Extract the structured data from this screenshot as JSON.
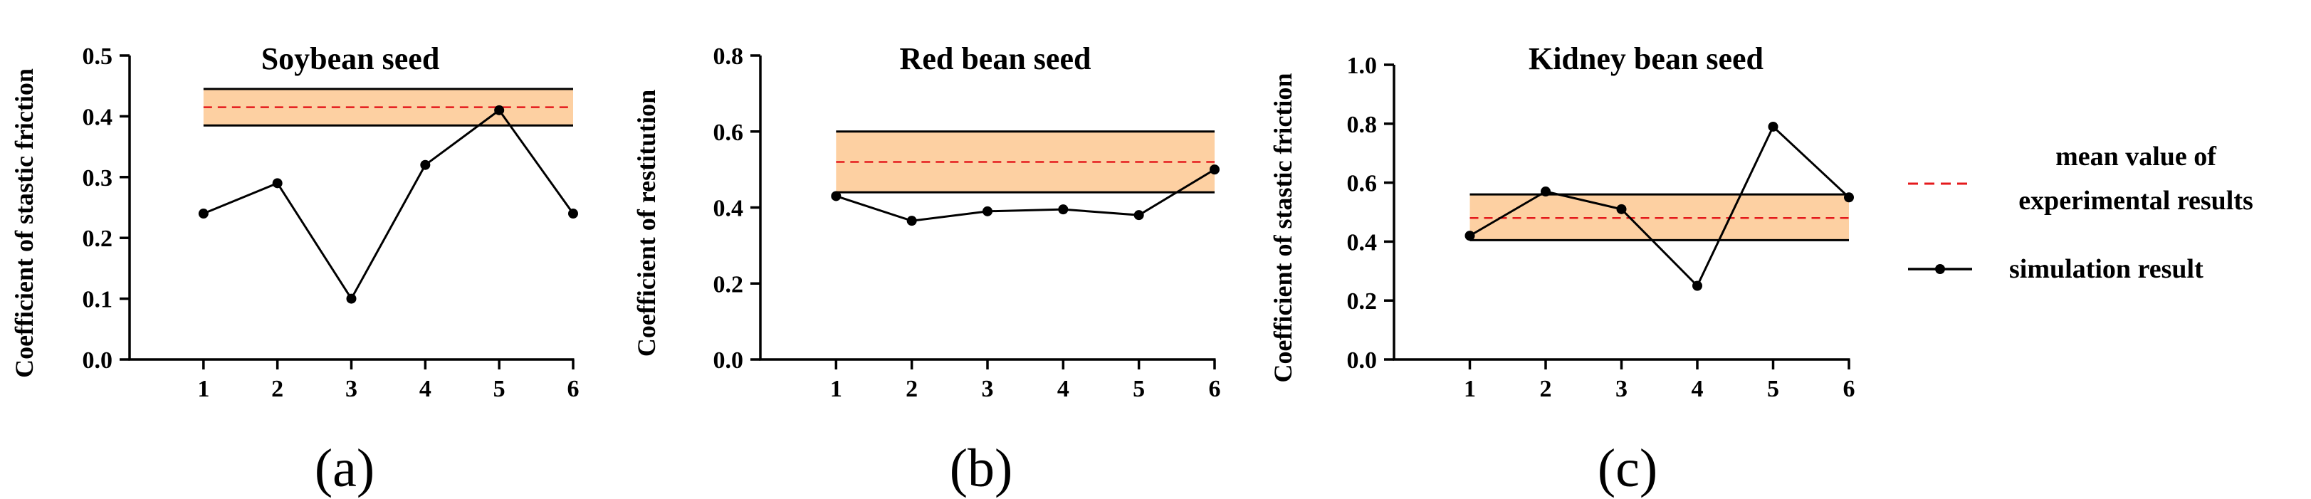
{
  "chart_data": [
    {
      "type": "line",
      "panel_label": "(a)",
      "title": "Soybean seed",
      "xlabel": "",
      "ylabel": "Coefficient of stastic friction",
      "x": [
        1,
        2,
        3,
        4,
        5,
        6
      ],
      "xlim": [
        0,
        6
      ],
      "ylim": [
        0,
        0.5
      ],
      "yticks": [
        0.0,
        0.1,
        0.2,
        0.3,
        0.4,
        0.5
      ],
      "ytick_labels": [
        "0.0",
        "0.1",
        "0.2",
        "0.3",
        "0.4",
        "0.5"
      ],
      "series": [
        {
          "name": "simulation result",
          "values": [
            0.24,
            0.29,
            0.1,
            0.32,
            0.41,
            0.24
          ]
        }
      ],
      "experimental_mean": 0.415,
      "experimental_band": [
        0.385,
        0.445
      ]
    },
    {
      "type": "line",
      "panel_label": "(b)",
      "title": "Red bean seed",
      "xlabel": "",
      "ylabel": "Coefficient of restitution",
      "x": [
        1,
        2,
        3,
        4,
        5,
        6
      ],
      "xlim": [
        0,
        6
      ],
      "ylim": [
        0,
        0.8
      ],
      "yticks": [
        0.0,
        0.2,
        0.4,
        0.6,
        0.8
      ],
      "ytick_labels": [
        "0.0",
        "0.2",
        "0.4",
        "0.6",
        "0.8"
      ],
      "series": [
        {
          "name": "simulation result",
          "values": [
            0.43,
            0.365,
            0.39,
            0.395,
            0.38,
            0.5
          ]
        }
      ],
      "experimental_mean": 0.52,
      "experimental_band": [
        0.44,
        0.6
      ]
    },
    {
      "type": "line",
      "panel_label": "(c)",
      "title": "Kidney bean seed",
      "xlabel": "",
      "ylabel": "Coefficient of stastic friction",
      "x": [
        1,
        2,
        3,
        4,
        5,
        6
      ],
      "xlim": [
        0,
        6
      ],
      "ylim": [
        0,
        1.0
      ],
      "yticks": [
        0.0,
        0.2,
        0.4,
        0.6,
        0.8,
        1.0
      ],
      "ytick_labels": [
        "0.0",
        "0.2",
        "0.4",
        "0.6",
        "0.8",
        "1.0"
      ],
      "series": [
        {
          "name": "simulation result",
          "values": [
            0.42,
            0.57,
            0.51,
            0.25,
            0.79,
            0.55
          ]
        }
      ],
      "experimental_mean": 0.48,
      "experimental_band": [
        0.405,
        0.56
      ]
    }
  ],
  "legend": {
    "mean_label_line1": "mean value of",
    "mean_label_line2": "experimental results",
    "simulation_label": "simulation result"
  },
  "colors": {
    "band_fill": "#fdd0a2",
    "mean_line": "#e41a1c",
    "axis": "#000000",
    "series": "#000000"
  }
}
